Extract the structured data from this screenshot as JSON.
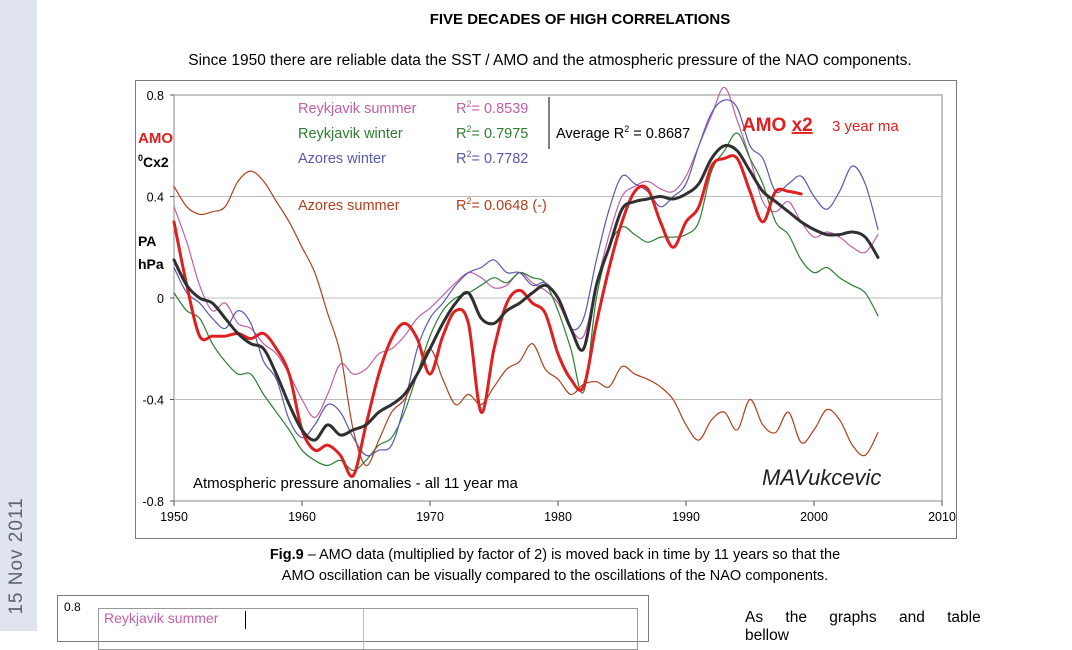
{
  "side_date": "15 Nov 2011",
  "heading": "FIVE DECADES OF HIGH CORRELATIONS",
  "subtitle": "Since 1950 there are reliable data the SST / AMO and the atmospheric pressure of  the NAO components.",
  "caption": {
    "fig_label": "Fig.9",
    "line1": " – AMO data (multiplied by factor of 2) is moved back in time by 11 years so that the",
    "line2": "AMO oscillation can be visually compared to the oscillations of the NAO components."
  },
  "fig2": {
    "tick": "0.8",
    "label": "Reykjavik summer"
  },
  "body_text": "As the graphs and table bellow",
  "chart_data": {
    "type": "line",
    "x_ticks": [
      "1950",
      "1960",
      "1970",
      "1980",
      "1990",
      "2000",
      "2010"
    ],
    "xlim": [
      1950,
      2010
    ],
    "y_ticks": [
      "0.8",
      "0.4",
      "0",
      "-0.4",
      "-0.8"
    ],
    "ylim": [
      -0.8,
      0.8
    ],
    "grid": "horizontal",
    "axis_labels": {
      "amo": "AMO",
      "amo_unit": "Cx2",
      "amo_unit_sup": "0",
      "pa": "PA",
      "pa_unit": "hPa"
    },
    "legend": [
      {
        "label": "Reykjavik summer",
        "r2": "= 0.8539",
        "color": "#c060a8"
      },
      {
        "label": "Reykjavik winter",
        "r2": "= 0.7975",
        "color": "#2e7d32"
      },
      {
        "label": "Azores winter",
        "r2": "= 0.7782",
        "color": "#5858b0"
      },
      {
        "label": "Azores summer",
        "r2": "= 0.0648 (-)",
        "color": "#b04020"
      }
    ],
    "r2_prefix": "R",
    "r2_sup": "2",
    "average": {
      "prefix": "Average R",
      "sup": "2",
      "value": " = 0.8687"
    },
    "amo_title": {
      "main": "AMO ",
      "x2": "x2",
      "ma": "3 year ma"
    },
    "note": "Atmospheric pressure anomalies - all 11 year ma",
    "signature": "MAVukcevic",
    "colors": {
      "amo": "#e02020",
      "average": "#303030",
      "grid": "#bdbdbd"
    },
    "series": [
      {
        "name": "Reykjavik summer",
        "color": "#c060a8",
        "width": 1.2,
        "x": [
          1950,
          1951,
          1952,
          1953,
          1954,
          1955,
          1956,
          1957,
          1958,
          1959,
          1960,
          1961,
          1962,
          1963,
          1964,
          1965,
          1966,
          1967,
          1968,
          1969,
          1970,
          1971,
          1972,
          1973,
          1974,
          1975,
          1976,
          1977,
          1978,
          1979,
          1980,
          1981,
          1982,
          1983,
          1984,
          1985,
          1986,
          1987,
          1988,
          1989,
          1990,
          1991,
          1992,
          1993,
          1994,
          1995,
          1996,
          1997,
          1998,
          1999,
          2000,
          2001,
          2002,
          2003,
          2004,
          2005
        ],
        "y": [
          0.36,
          0.22,
          0.05,
          -0.05,
          -0.02,
          -0.1,
          -0.12,
          -0.18,
          -0.22,
          -0.3,
          -0.4,
          -0.47,
          -0.38,
          -0.26,
          -0.3,
          -0.28,
          -0.22,
          -0.2,
          -0.15,
          -0.08,
          -0.04,
          0.01,
          0.06,
          0.1,
          0.08,
          0.04,
          0.05,
          0.1,
          0.06,
          0.03,
          -0.02,
          -0.12,
          -0.15,
          0.05,
          0.25,
          0.4,
          0.44,
          0.46,
          0.43,
          0.42,
          0.48,
          0.6,
          0.72,
          0.83,
          0.7,
          0.55,
          0.38,
          0.34,
          0.38,
          0.3,
          0.24,
          0.26,
          0.24,
          0.2,
          0.18,
          0.25
        ]
      },
      {
        "name": "Reykjavik winter",
        "color": "#2e7d32",
        "width": 1.2,
        "x": [
          1950,
          1951,
          1952,
          1953,
          1954,
          1955,
          1956,
          1957,
          1958,
          1959,
          1960,
          1961,
          1962,
          1963,
          1964,
          1965,
          1966,
          1967,
          1968,
          1969,
          1970,
          1971,
          1972,
          1973,
          1974,
          1975,
          1976,
          1977,
          1978,
          1979,
          1980,
          1981,
          1982,
          1983,
          1984,
          1985,
          1986,
          1987,
          1988,
          1989,
          1990,
          1991,
          1992,
          1993,
          1994,
          1995,
          1996,
          1997,
          1998,
          1999,
          2000,
          2001,
          2002,
          2003,
          2004,
          2005
        ],
        "y": [
          0.02,
          -0.05,
          -0.08,
          -0.18,
          -0.25,
          -0.3,
          -0.3,
          -0.38,
          -0.45,
          -0.52,
          -0.6,
          -0.64,
          -0.66,
          -0.64,
          -0.68,
          -0.64,
          -0.58,
          -0.55,
          -0.45,
          -0.3,
          -0.15,
          -0.05,
          0.0,
          0.02,
          0.05,
          0.08,
          0.06,
          0.1,
          0.08,
          0.06,
          -0.05,
          -0.2,
          -0.37,
          0.0,
          0.2,
          0.28,
          0.25,
          0.22,
          0.24,
          0.24,
          0.25,
          0.3,
          0.5,
          0.58,
          0.65,
          0.55,
          0.45,
          0.3,
          0.25,
          0.15,
          0.1,
          0.12,
          0.08,
          0.05,
          0.02,
          -0.07
        ]
      },
      {
        "name": "Azores winter",
        "color": "#5858b0",
        "width": 1.2,
        "x": [
          1950,
          1951,
          1952,
          1953,
          1954,
          1955,
          1956,
          1957,
          1958,
          1959,
          1960,
          1961,
          1962,
          1963,
          1964,
          1965,
          1966,
          1967,
          1968,
          1969,
          1970,
          1971,
          1972,
          1973,
          1974,
          1975,
          1976,
          1977,
          1978,
          1979,
          1980,
          1981,
          1982,
          1983,
          1984,
          1985,
          1986,
          1987,
          1988,
          1989,
          1990,
          1991,
          1992,
          1993,
          1994,
          1995,
          1996,
          1997,
          1998,
          1999,
          2000,
          2001,
          2002,
          2003,
          2004,
          2005
        ],
        "y": [
          0.12,
          0.02,
          -0.02,
          -0.08,
          -0.12,
          -0.05,
          -0.1,
          -0.25,
          -0.32,
          -0.48,
          -0.55,
          -0.5,
          -0.42,
          -0.45,
          -0.55,
          -0.62,
          -0.6,
          -0.58,
          -0.42,
          -0.2,
          -0.08,
          -0.02,
          0.05,
          0.1,
          0.12,
          0.15,
          0.1,
          0.1,
          0.05,
          0.06,
          0.0,
          -0.12,
          -0.08,
          0.15,
          0.35,
          0.48,
          0.45,
          0.42,
          0.36,
          0.4,
          0.45,
          0.6,
          0.73,
          0.78,
          0.75,
          0.6,
          0.55,
          0.42,
          0.45,
          0.48,
          0.4,
          0.35,
          0.42,
          0.52,
          0.45,
          0.27
        ]
      },
      {
        "name": "Azores summer",
        "color": "#b04020",
        "width": 1.2,
        "x": [
          1950,
          1951,
          1952,
          1953,
          1954,
          1955,
          1956,
          1957,
          1958,
          1959,
          1960,
          1961,
          1962,
          1963,
          1964,
          1965,
          1966,
          1967,
          1968,
          1969,
          1970,
          1971,
          1972,
          1973,
          1974,
          1975,
          1976,
          1977,
          1978,
          1979,
          1980,
          1981,
          1982,
          1983,
          1984,
          1985,
          1986,
          1987,
          1988,
          1989,
          1990,
          1991,
          1992,
          1993,
          1994,
          1995,
          1996,
          1997,
          1998,
          1999,
          2000,
          2001,
          2002,
          2003,
          2004,
          2005
        ],
        "y": [
          0.44,
          0.36,
          0.33,
          0.34,
          0.36,
          0.46,
          0.5,
          0.46,
          0.38,
          0.3,
          0.2,
          0.1,
          -0.06,
          -0.22,
          -0.52,
          -0.66,
          -0.56,
          -0.45,
          -0.4,
          -0.3,
          -0.2,
          -0.32,
          -0.42,
          -0.38,
          -0.42,
          -0.35,
          -0.28,
          -0.25,
          -0.18,
          -0.28,
          -0.32,
          -0.38,
          -0.34,
          -0.33,
          -0.35,
          -0.27,
          -0.3,
          -0.32,
          -0.35,
          -0.4,
          -0.5,
          -0.56,
          -0.48,
          -0.45,
          -0.52,
          -0.4,
          -0.5,
          -0.53,
          -0.45,
          -0.57,
          -0.52,
          -0.44,
          -0.48,
          -0.58,
          -0.62,
          -0.53
        ]
      },
      {
        "name": "AMO x2",
        "color": "#e02020",
        "width": 3,
        "x": [
          1950,
          1951,
          1952,
          1953,
          1954,
          1955,
          1956,
          1957,
          1958,
          1959,
          1960,
          1961,
          1962,
          1963,
          1964,
          1965,
          1966,
          1967,
          1968,
          1969,
          1970,
          1971,
          1972,
          1973,
          1974,
          1975,
          1976,
          1977,
          1978,
          1979,
          1980,
          1981,
          1982,
          1983,
          1984,
          1985,
          1986,
          1987,
          1988,
          1989,
          1990,
          1991,
          1992,
          1993,
          1994,
          1995,
          1996,
          1997,
          1998,
          1999
        ],
        "y": [
          0.3,
          0.05,
          -0.15,
          -0.15,
          -0.15,
          -0.14,
          -0.16,
          -0.14,
          -0.2,
          -0.3,
          -0.52,
          -0.6,
          -0.58,
          -0.62,
          -0.7,
          -0.5,
          -0.3,
          -0.16,
          -0.1,
          -0.16,
          -0.3,
          -0.15,
          -0.05,
          -0.1,
          -0.45,
          -0.2,
          -0.02,
          0.03,
          -0.02,
          -0.06,
          -0.22,
          -0.32,
          -0.35,
          -0.1,
          0.12,
          0.3,
          0.42,
          0.43,
          0.3,
          0.2,
          0.3,
          0.36,
          0.52,
          0.55,
          0.55,
          0.42,
          0.3,
          0.42,
          0.42,
          0.41
        ]
      },
      {
        "name": "Average",
        "color": "#303030",
        "width": 3,
        "x": [
          1950,
          1951,
          1952,
          1953,
          1954,
          1955,
          1956,
          1957,
          1958,
          1959,
          1960,
          1961,
          1962,
          1963,
          1964,
          1965,
          1966,
          1967,
          1968,
          1969,
          1970,
          1971,
          1972,
          1973,
          1974,
          1975,
          1976,
          1977,
          1978,
          1979,
          1980,
          1981,
          1982,
          1983,
          1984,
          1985,
          1986,
          1987,
          1988,
          1989,
          1990,
          1991,
          1992,
          1993,
          1994,
          1995,
          1996,
          1997,
          1998,
          1999,
          2000,
          2001,
          2002,
          2003,
          2004,
          2005
        ],
        "y": [
          0.15,
          0.05,
          0.0,
          -0.02,
          -0.08,
          -0.14,
          -0.18,
          -0.2,
          -0.3,
          -0.42,
          -0.52,
          -0.56,
          -0.5,
          -0.54,
          -0.52,
          -0.5,
          -0.45,
          -0.42,
          -0.38,
          -0.3,
          -0.2,
          -0.1,
          -0.02,
          0.02,
          -0.08,
          -0.1,
          -0.05,
          -0.02,
          0.02,
          0.05,
          0.0,
          -0.12,
          -0.2,
          0.05,
          0.2,
          0.35,
          0.38,
          0.39,
          0.4,
          0.39,
          0.41,
          0.45,
          0.55,
          0.6,
          0.58,
          0.5,
          0.42,
          0.38,
          0.34,
          0.3,
          0.27,
          0.25,
          0.25,
          0.26,
          0.24,
          0.16
        ]
      }
    ]
  }
}
